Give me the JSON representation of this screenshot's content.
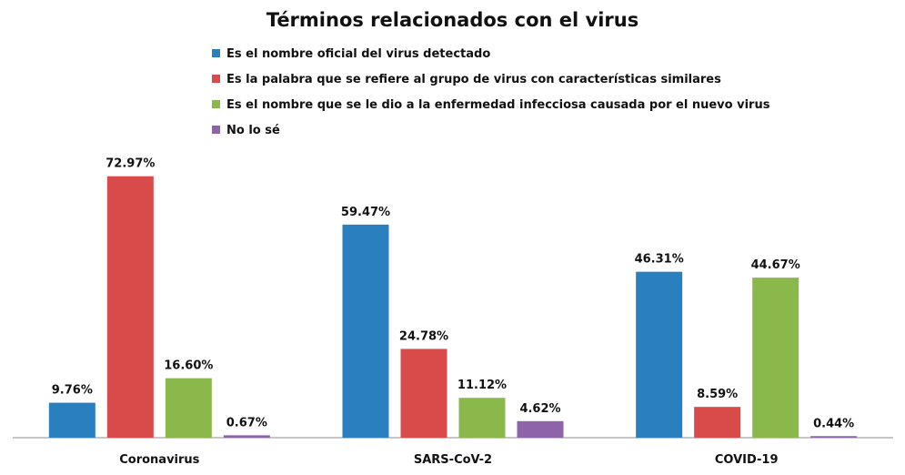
{
  "chart_data": {
    "type": "bar",
    "title": "Términos relacionados con el virus",
    "categories": [
      "Coronavirus",
      "SARS-CoV-2",
      "COVID-19"
    ],
    "series": [
      {
        "name": "Es el nombre oficial del virus detectado",
        "color": "#2a7fbf",
        "values": [
          9.76,
          59.47,
          46.31
        ],
        "labels": [
          "9.76%",
          "59.47%",
          "46.31%"
        ]
      },
      {
        "name": "Es la palabra que se refiere al grupo de virus con características similares",
        "color": "#d94b4b",
        "values": [
          72.97,
          24.78,
          8.59
        ],
        "labels": [
          "72.97%",
          "24.78%",
          "8.59%"
        ]
      },
      {
        "name": "Es el nombre que se le dio a la enfermedad infecciosa causada por el nuevo virus",
        "color": "#8ab84b",
        "values": [
          16.6,
          11.12,
          44.67
        ],
        "labels": [
          "16.60%",
          "11.12%",
          "44.67%"
        ]
      },
      {
        "name": "No lo sé",
        "color": "#8e63a9",
        "values": [
          0.67,
          4.62,
          0.44
        ],
        "labels": [
          "0.67%",
          "4.62%",
          "0.44%"
        ]
      }
    ],
    "ylim": [
      0,
      80
    ],
    "grid": false,
    "legend_position": "top-left"
  }
}
